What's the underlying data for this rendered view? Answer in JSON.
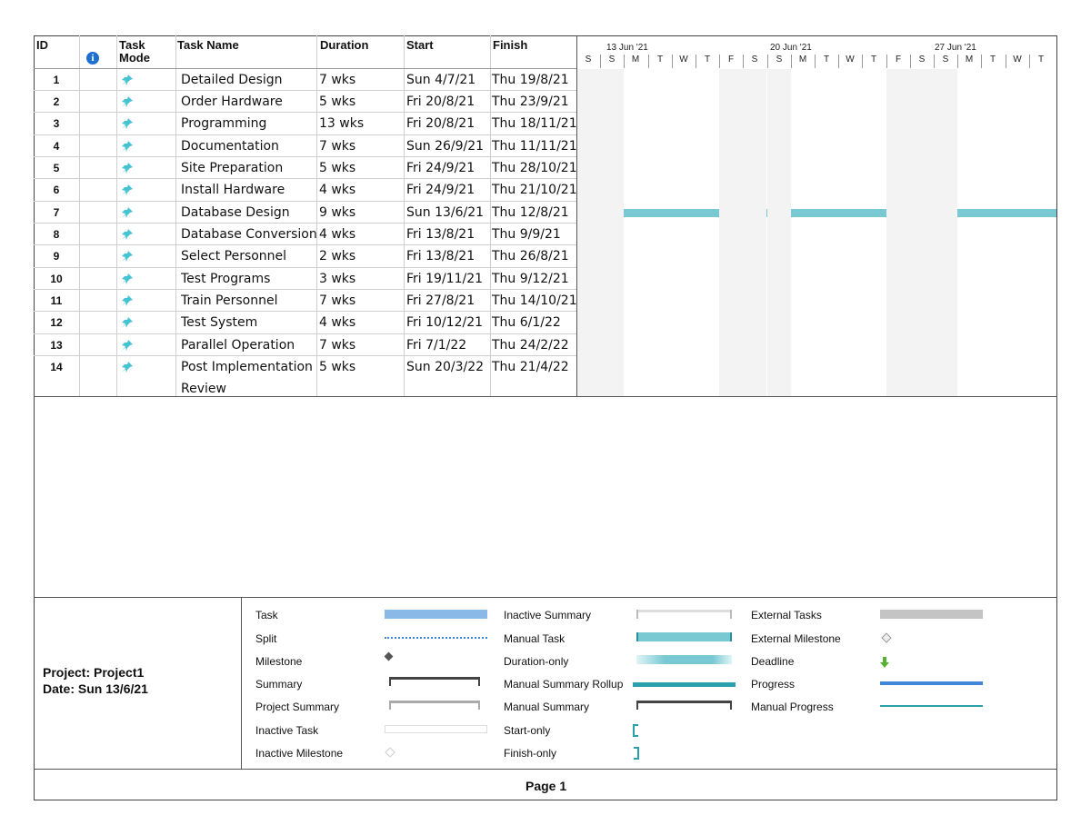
{
  "columns": {
    "id": "ID",
    "info_icon": "info-icon",
    "task_mode": "Task Mode",
    "task_name": "Task Name",
    "duration": "Duration",
    "start": "Start",
    "finish": "Finish"
  },
  "timeline": {
    "weeks": [
      "13 Jun '21",
      "20 Jun '21",
      "27 Jun '21"
    ],
    "days": [
      "S",
      "S",
      "M",
      "T",
      "W",
      "T",
      "F",
      "S",
      "S",
      "M",
      "T",
      "W",
      "T",
      "F",
      "S",
      "S",
      "M",
      "T",
      "W",
      "T"
    ]
  },
  "tasks": [
    {
      "id": "1",
      "name": "Detailed Design",
      "duration": "7 wks",
      "start": "Sun 4/7/21",
      "finish": "Thu 19/8/21"
    },
    {
      "id": "2",
      "name": "Order Hardware",
      "duration": "5 wks",
      "start": "Fri 20/8/21",
      "finish": "Thu 23/9/21"
    },
    {
      "id": "3",
      "name": "Programming",
      "duration": "13 wks",
      "start": "Fri 20/8/21",
      "finish": "Thu 18/11/21"
    },
    {
      "id": "4",
      "name": "Documentation",
      "duration": "7 wks",
      "start": "Sun 26/9/21",
      "finish": "Thu 11/11/21"
    },
    {
      "id": "5",
      "name": "Site Preparation",
      "duration": "5 wks",
      "start": "Fri 24/9/21",
      "finish": "Thu 28/10/21"
    },
    {
      "id": "6",
      "name": "Install Hardware",
      "duration": "4 wks",
      "start": "Fri 24/9/21",
      "finish": "Thu 21/10/21"
    },
    {
      "id": "7",
      "name": "Database Design",
      "duration": "9 wks",
      "start": "Sun 13/6/21",
      "finish": "Thu 12/8/21"
    },
    {
      "id": "8",
      "name": "Database Conversion",
      "duration": "4 wks",
      "start": "Fri 13/8/21",
      "finish": "Thu 9/9/21"
    },
    {
      "id": "9",
      "name": "Select Personnel",
      "duration": "2 wks",
      "start": "Fri 13/8/21",
      "finish": "Thu 26/8/21"
    },
    {
      "id": "10",
      "name": "Test Programs",
      "duration": "3 wks",
      "start": "Fri 19/11/21",
      "finish": "Thu 9/12/21"
    },
    {
      "id": "11",
      "name": "Train Personnel",
      "duration": "7 wks",
      "start": "Fri 27/8/21",
      "finish": "Thu 14/10/21"
    },
    {
      "id": "12",
      "name": "Test System",
      "duration": "4 wks",
      "start": "Fri 10/12/21",
      "finish": "Thu 6/1/22"
    },
    {
      "id": "13",
      "name": "Parallel Operation",
      "duration": "7 wks",
      "start": "Fri 7/1/22",
      "finish": "Thu 24/2/22"
    },
    {
      "id": "14",
      "name": "Post Implementation",
      "name2": "Review",
      "duration": "5 wks",
      "start": "Sun 20/3/22",
      "finish": "Thu 21/4/22"
    }
  ],
  "legend": {
    "col1": [
      "Task",
      "Split",
      "Milestone",
      "Summary",
      "Project Summary",
      "Inactive Task",
      "Inactive Milestone"
    ],
    "col2": [
      "Inactive Summary",
      "Manual Task",
      "Duration-only",
      "Manual Summary Rollup",
      "Manual Summary",
      "Start-only",
      "Finish-only"
    ],
    "col3": [
      "External Tasks",
      "External Milestone",
      "Deadline",
      "Progress",
      "Manual Progress"
    ]
  },
  "footer": {
    "project": "Project: Project1",
    "date": "Date: Sun 13/6/21",
    "page": "Page 1"
  },
  "colors": {
    "manual_task": "#79c9d3",
    "task": "#8ab9e8",
    "progress": "#3f86d6",
    "manual_progress": "#2aa0ad",
    "today_line": "#64b45a"
  }
}
